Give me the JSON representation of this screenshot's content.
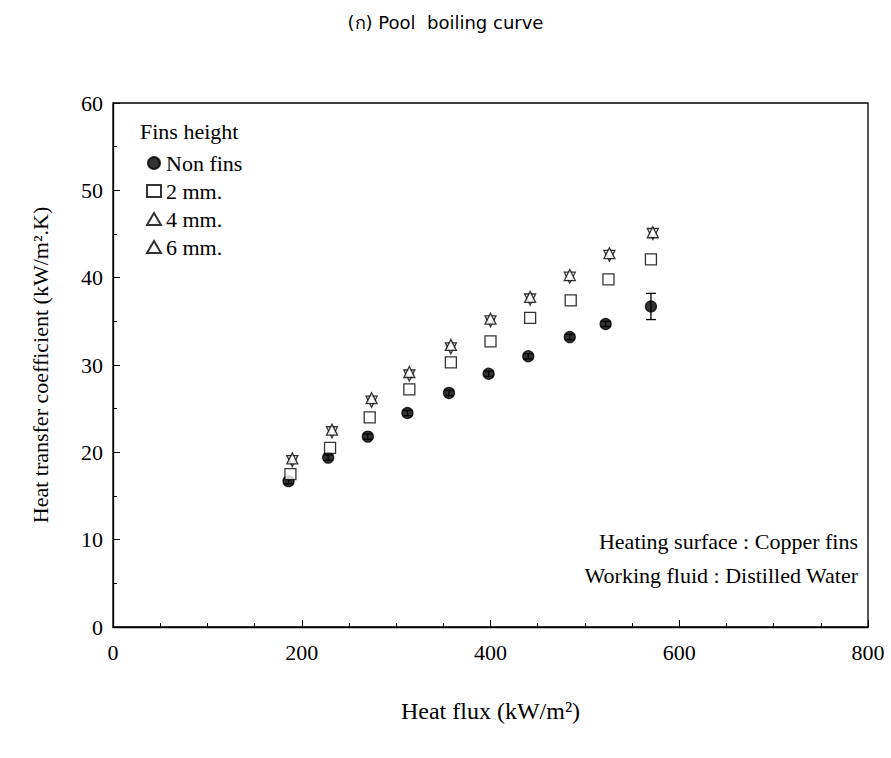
{
  "chart_data": {
    "type": "scatter",
    "title": "(ก) Pool  boiling curve",
    "x_label": "Heat flux (kW/m²)",
    "y_label": "Heat transfer coefficient (kW/m².K)",
    "legend_title": "Fins height",
    "annotations": [
      "Heating surface : Copper fins",
      "Working fluid : Distilled Water"
    ],
    "xlim": [
      0,
      800
    ],
    "xticks": [
      0,
      200,
      400,
      600,
      800
    ],
    "ylim": [
      0,
      60
    ],
    "yticks": [
      0,
      10,
      20,
      30,
      40,
      50,
      60
    ],
    "grid": false,
    "legend": "upper left",
    "series": [
      {
        "name": "Non fins",
        "color": "#000000",
        "marker": "filled_circle",
        "x": [
          186,
          228,
          270,
          312,
          356,
          398,
          440,
          484,
          522,
          570
        ],
        "values": [
          16.7,
          19.4,
          21.8,
          24.5,
          26.8,
          29.0,
          31.0,
          33.2,
          34.7,
          36.7
        ],
        "y_error": [
          0.3,
          0.3,
          0.3,
          0.3,
          0.3,
          0.3,
          0.3,
          0.3,
          0.3,
          1.5
        ]
      },
      {
        "name": "2 mm.",
        "color": "#000000",
        "marker": "open_square",
        "x": [
          188,
          230,
          272,
          314,
          358,
          400,
          442,
          485,
          525,
          570
        ],
        "values": [
          17.5,
          20.5,
          24.0,
          27.2,
          30.3,
          32.7,
          35.4,
          37.4,
          39.8,
          42.1
        ]
      },
      {
        "name": "4 mm.",
        "color": "#000000",
        "marker": "open_triangle_down",
        "x": [
          190,
          232,
          274,
          314,
          358,
          400,
          442,
          484,
          526,
          572
        ],
        "values": [
          19.0,
          22.3,
          25.8,
          28.8,
          31.9,
          35.0,
          37.5,
          40.0,
          42.5,
          45.0
        ]
      },
      {
        "name": "6 mm.",
        "color": "#000000",
        "marker": "open_triangle_up",
        "x": [
          190,
          232,
          274,
          314,
          358,
          400,
          442,
          484,
          526,
          572
        ],
        "values": [
          19.3,
          22.6,
          26.2,
          29.2,
          32.3,
          35.3,
          37.8,
          40.3,
          42.8,
          45.2
        ]
      }
    ]
  }
}
